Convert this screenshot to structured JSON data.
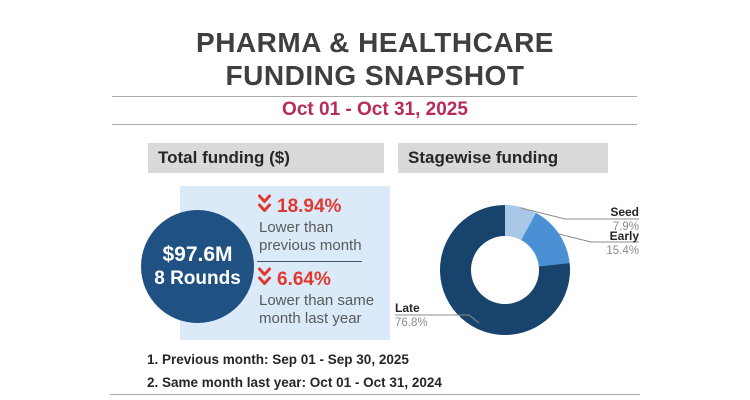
{
  "header": {
    "title_line1": "PHARMA & HEALTHCARE",
    "title_line2": "FUNDING SNAPSHOT",
    "date_range": "Oct 01 - Oct 31, 2025"
  },
  "total_funding": {
    "section_title": "Total funding ($)",
    "amount": "$97.6M",
    "rounds": "8 Rounds",
    "mom": {
      "value": "18.94%",
      "label": "Lower than previous month",
      "direction": "down"
    },
    "yoy": {
      "value": "6.64%",
      "label": "Lower than same month last year",
      "direction": "down"
    }
  },
  "stagewise": {
    "section_title": "Stagewise funding"
  },
  "chart_data": {
    "type": "pie",
    "donut": true,
    "title": "Stagewise funding",
    "categories": [
      "Seed",
      "Early",
      "Late"
    ],
    "values": [
      7.9,
      15.4,
      76.8
    ],
    "labels": [
      "7.9%",
      "15.4%",
      "76.8%"
    ],
    "colors": [
      "#a9c7e7",
      "#4a90d5",
      "#17436c"
    ],
    "start_angle_deg": 0,
    "direction": "clockwise",
    "legend_position": "callout-labels"
  },
  "footnotes": [
    "1. Previous month: Sep 01 - Sep 30, 2025",
    "2. Same month last year: Oct 01 - Oct 31, 2024"
  ],
  "icons": {
    "down_arrow": "double-chevron-down"
  },
  "colors": {
    "accent_red": "#e03a30",
    "date_accent": "#b62b5b",
    "circle_blue": "#205183",
    "panel_blue": "#daeaf8",
    "header_bar_gray": "#d9d9d9"
  }
}
